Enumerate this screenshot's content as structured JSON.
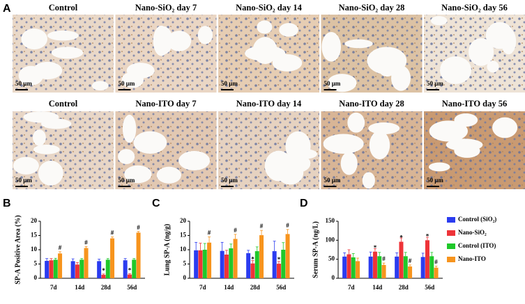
{
  "panel_a": {
    "label": "A",
    "scale_bar": "50 μm",
    "rows": [
      {
        "captions": [
          "Control",
          "Nano-SiO₂ day 7",
          "Nano-SiO₂ day 14",
          "Nano-SiO₂ day 28",
          "Nano-SiO₂ day 56"
        ]
      },
      {
        "captions": [
          "Control",
          "Nano-ITO day 7",
          "Nano-ITO day 14",
          "Nano-ITO day 28",
          "Nano-ITO day 56"
        ]
      }
    ]
  },
  "legend": [
    {
      "name": "Control (SiO₂)",
      "color": "#2b3cf0"
    },
    {
      "name": "Nano-SiO₂",
      "color": "#ee3338"
    },
    {
      "name": "Control (ITO)",
      "color": "#1fc82a"
    },
    {
      "name": "Nano-ITO",
      "color": "#f7941d"
    }
  ],
  "chart_data": [
    {
      "type": "bar",
      "label": "B",
      "y_label": "SP-A Positive Area (%)",
      "categories": [
        "7d",
        "14d",
        "28d",
        "56d"
      ],
      "ylim": [
        0,
        20
      ],
      "yticks": [
        0,
        5,
        10,
        15,
        20
      ],
      "series": [
        {
          "values": [
            6.1,
            6.0,
            6.0,
            6.3
          ],
          "errors": [
            0.8,
            0.8,
            0.7,
            0.6
          ],
          "markers": [
            null,
            null,
            null,
            null
          ]
        },
        {
          "values": [
            6.3,
            4.8,
            1.2,
            1.3
          ],
          "errors": [
            0.6,
            0.7,
            0.3,
            0.3
          ],
          "markers": [
            null,
            null,
            "*",
            "*"
          ]
        },
        {
          "values": [
            6.5,
            6.5,
            6.5,
            6.5
          ],
          "errors": [
            0.5,
            0.4,
            0.4,
            0.4
          ],
          "markers": [
            null,
            null,
            null,
            null
          ]
        },
        {
          "values": [
            8.7,
            10.6,
            14.0,
            16.0
          ],
          "errors": [
            0.6,
            0.5,
            0.5,
            0.4
          ],
          "markers": [
            "#",
            "#",
            "#",
            "#"
          ]
        }
      ]
    },
    {
      "type": "bar",
      "label": "C",
      "y_label": "Lung SP-A (ng/g)",
      "categories": [
        "7d",
        "14d",
        "28d",
        "56d"
      ],
      "ylim": [
        0,
        20
      ],
      "yticks": [
        0,
        5,
        10,
        15,
        20
      ],
      "series": [
        {
          "values": [
            9.8,
            9.6,
            8.8,
            9.5
          ],
          "errors": [
            2.8,
            3.0,
            1.0,
            3.5
          ],
          "markers": [
            null,
            null,
            null,
            null
          ]
        },
        {
          "values": [
            9.8,
            8.3,
            5.2,
            5.1
          ],
          "errors": [
            2.5,
            1.5,
            1.0,
            0.8
          ],
          "markers": [
            null,
            null,
            "*",
            "*"
          ]
        },
        {
          "values": [
            10.0,
            10.5,
            9.5,
            10.0
          ],
          "errors": [
            2.2,
            1.5,
            1.5,
            2.5
          ],
          "markers": [
            null,
            null,
            null,
            null
          ]
        },
        {
          "values": [
            12.5,
            13.8,
            15.1,
            15.5
          ],
          "errors": [
            2.0,
            1.6,
            1.7,
            1.6
          ],
          "markers": [
            "#",
            "#",
            "#",
            "#"
          ]
        }
      ]
    },
    {
      "type": "bar",
      "label": "D",
      "y_label": "Serum SP-A (ng/L)",
      "categories": [
        "7d",
        "14d",
        "28d",
        "56d"
      ],
      "ylim": [
        0,
        150
      ],
      "yticks": [
        0,
        50,
        100,
        150
      ],
      "series": [
        {
          "values": [
            57,
            57,
            57,
            56
          ],
          "errors": [
            10,
            12,
            10,
            10
          ],
          "markers": [
            null,
            null,
            null,
            null
          ]
        },
        {
          "values": [
            63,
            70,
            96,
            100
          ],
          "errors": [
            12,
            8,
            10,
            8
          ],
          "markers": [
            null,
            "*",
            "*",
            "*"
          ]
        },
        {
          "values": [
            55,
            58,
            58,
            58
          ],
          "errors": [
            10,
            10,
            10,
            10
          ],
          "markers": [
            null,
            null,
            null,
            null
          ]
        },
        {
          "values": [
            45,
            35,
            31,
            28
          ],
          "errors": [
            8,
            5,
            4,
            4
          ],
          "markers": [
            null,
            "#",
            "#",
            "#"
          ]
        }
      ]
    }
  ]
}
